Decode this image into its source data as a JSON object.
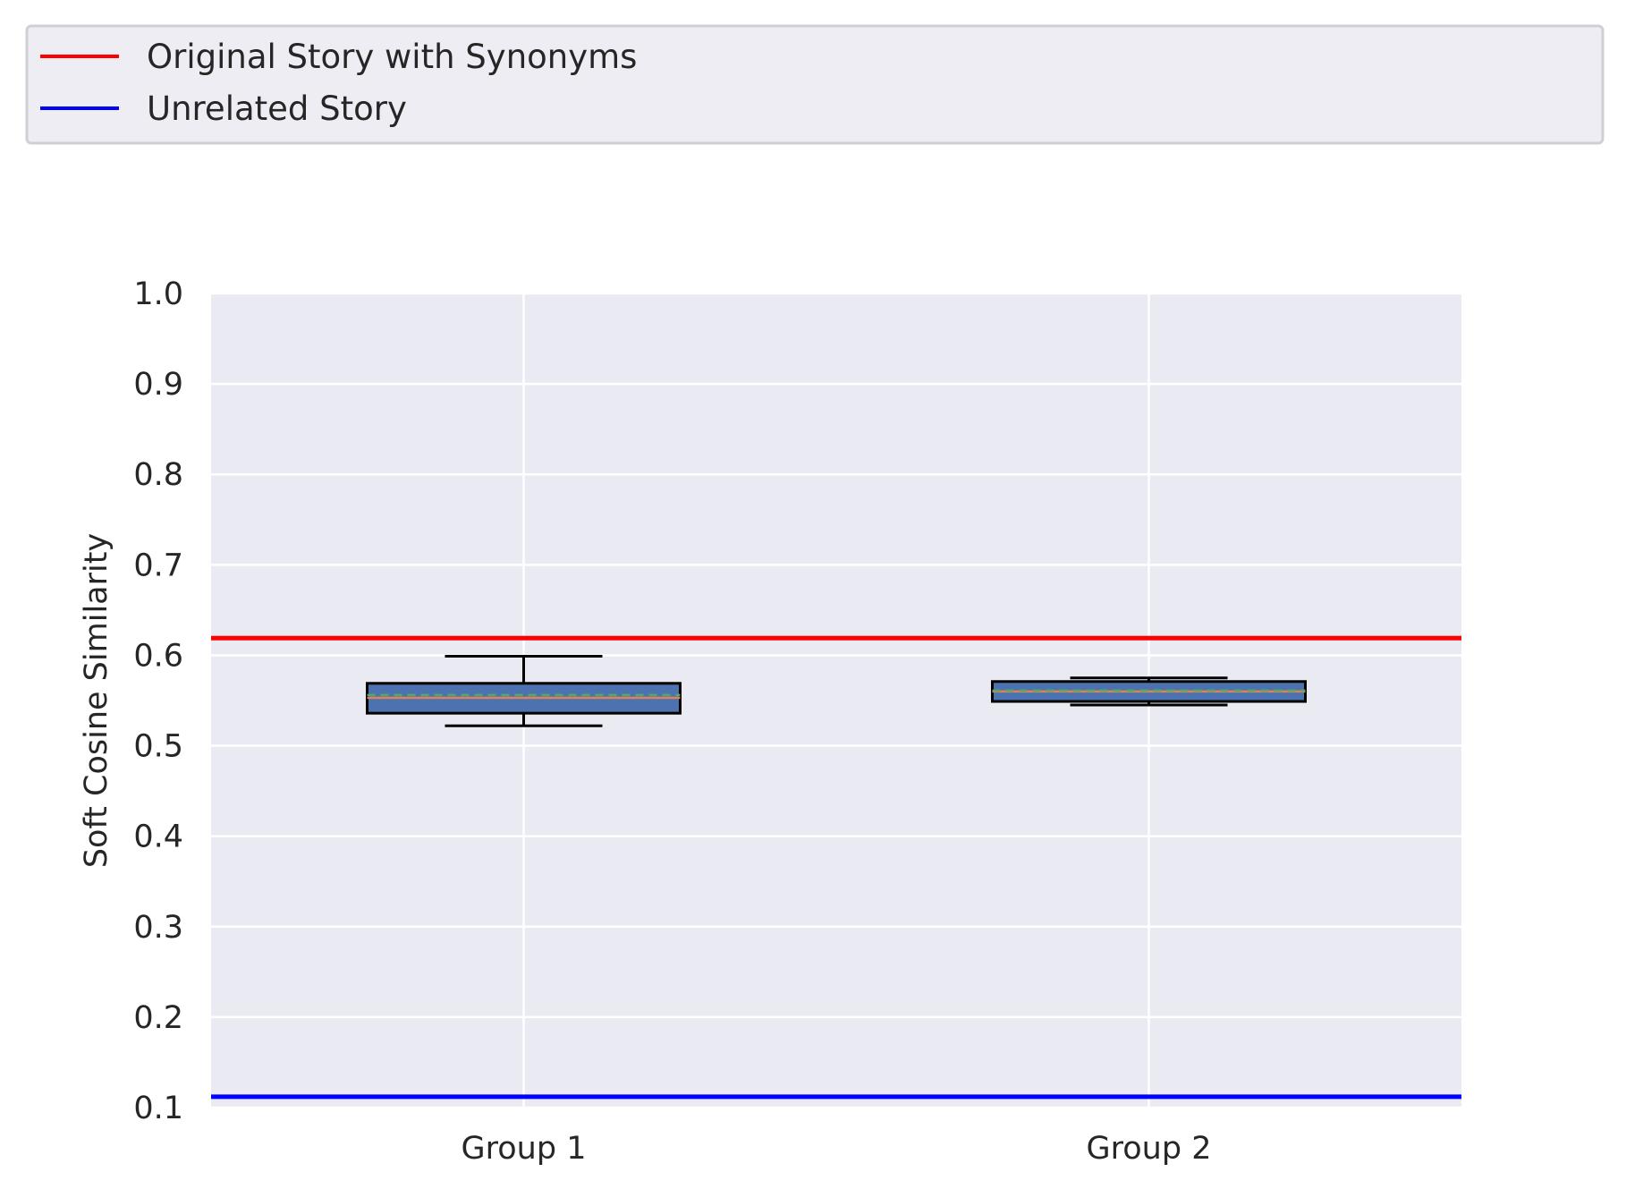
{
  "chart_data": {
    "type": "box",
    "title": "",
    "xlabel": "",
    "ylabel": "Soft Cosine Similarity",
    "ylim": [
      0.1,
      1.0
    ],
    "yticks": [
      "0.1",
      "0.2",
      "0.3",
      "0.4",
      "0.5",
      "0.6",
      "0.7",
      "0.8",
      "0.9",
      "1.0"
    ],
    "grid": true,
    "categories": [
      "Group 1",
      "Group 2"
    ],
    "boxes": [
      {
        "name": "Group 1",
        "whisker_low": 0.522,
        "q1": 0.536,
        "median": 0.553,
        "mean": 0.556,
        "q3": 0.569,
        "whisker_high": 0.599
      },
      {
        "name": "Group 2",
        "whisker_low": 0.545,
        "q1": 0.549,
        "median": 0.56,
        "mean": 0.561,
        "q3": 0.571,
        "whisker_high": 0.575
      }
    ],
    "reference_lines": [
      {
        "name": "Original Story with Synonyms",
        "value": 0.619,
        "color": "#ff0000"
      },
      {
        "name": "Unrelated Story",
        "value": 0.112,
        "color": "#0000ff"
      }
    ],
    "legend": {
      "placement": "top-left",
      "entries": [
        {
          "label": "Original Story with Synonyms",
          "color": "#ff0000"
        },
        {
          "label": "Unrelated Story",
          "color": "#0000ff"
        }
      ]
    },
    "colors": {
      "plot_background": "#eaeaf2",
      "grid": "#ffffff",
      "box_fill": "#4c72b0",
      "box_edge": "#000000",
      "median_line": "#dd8452",
      "mean_line": "#55a868"
    }
  }
}
